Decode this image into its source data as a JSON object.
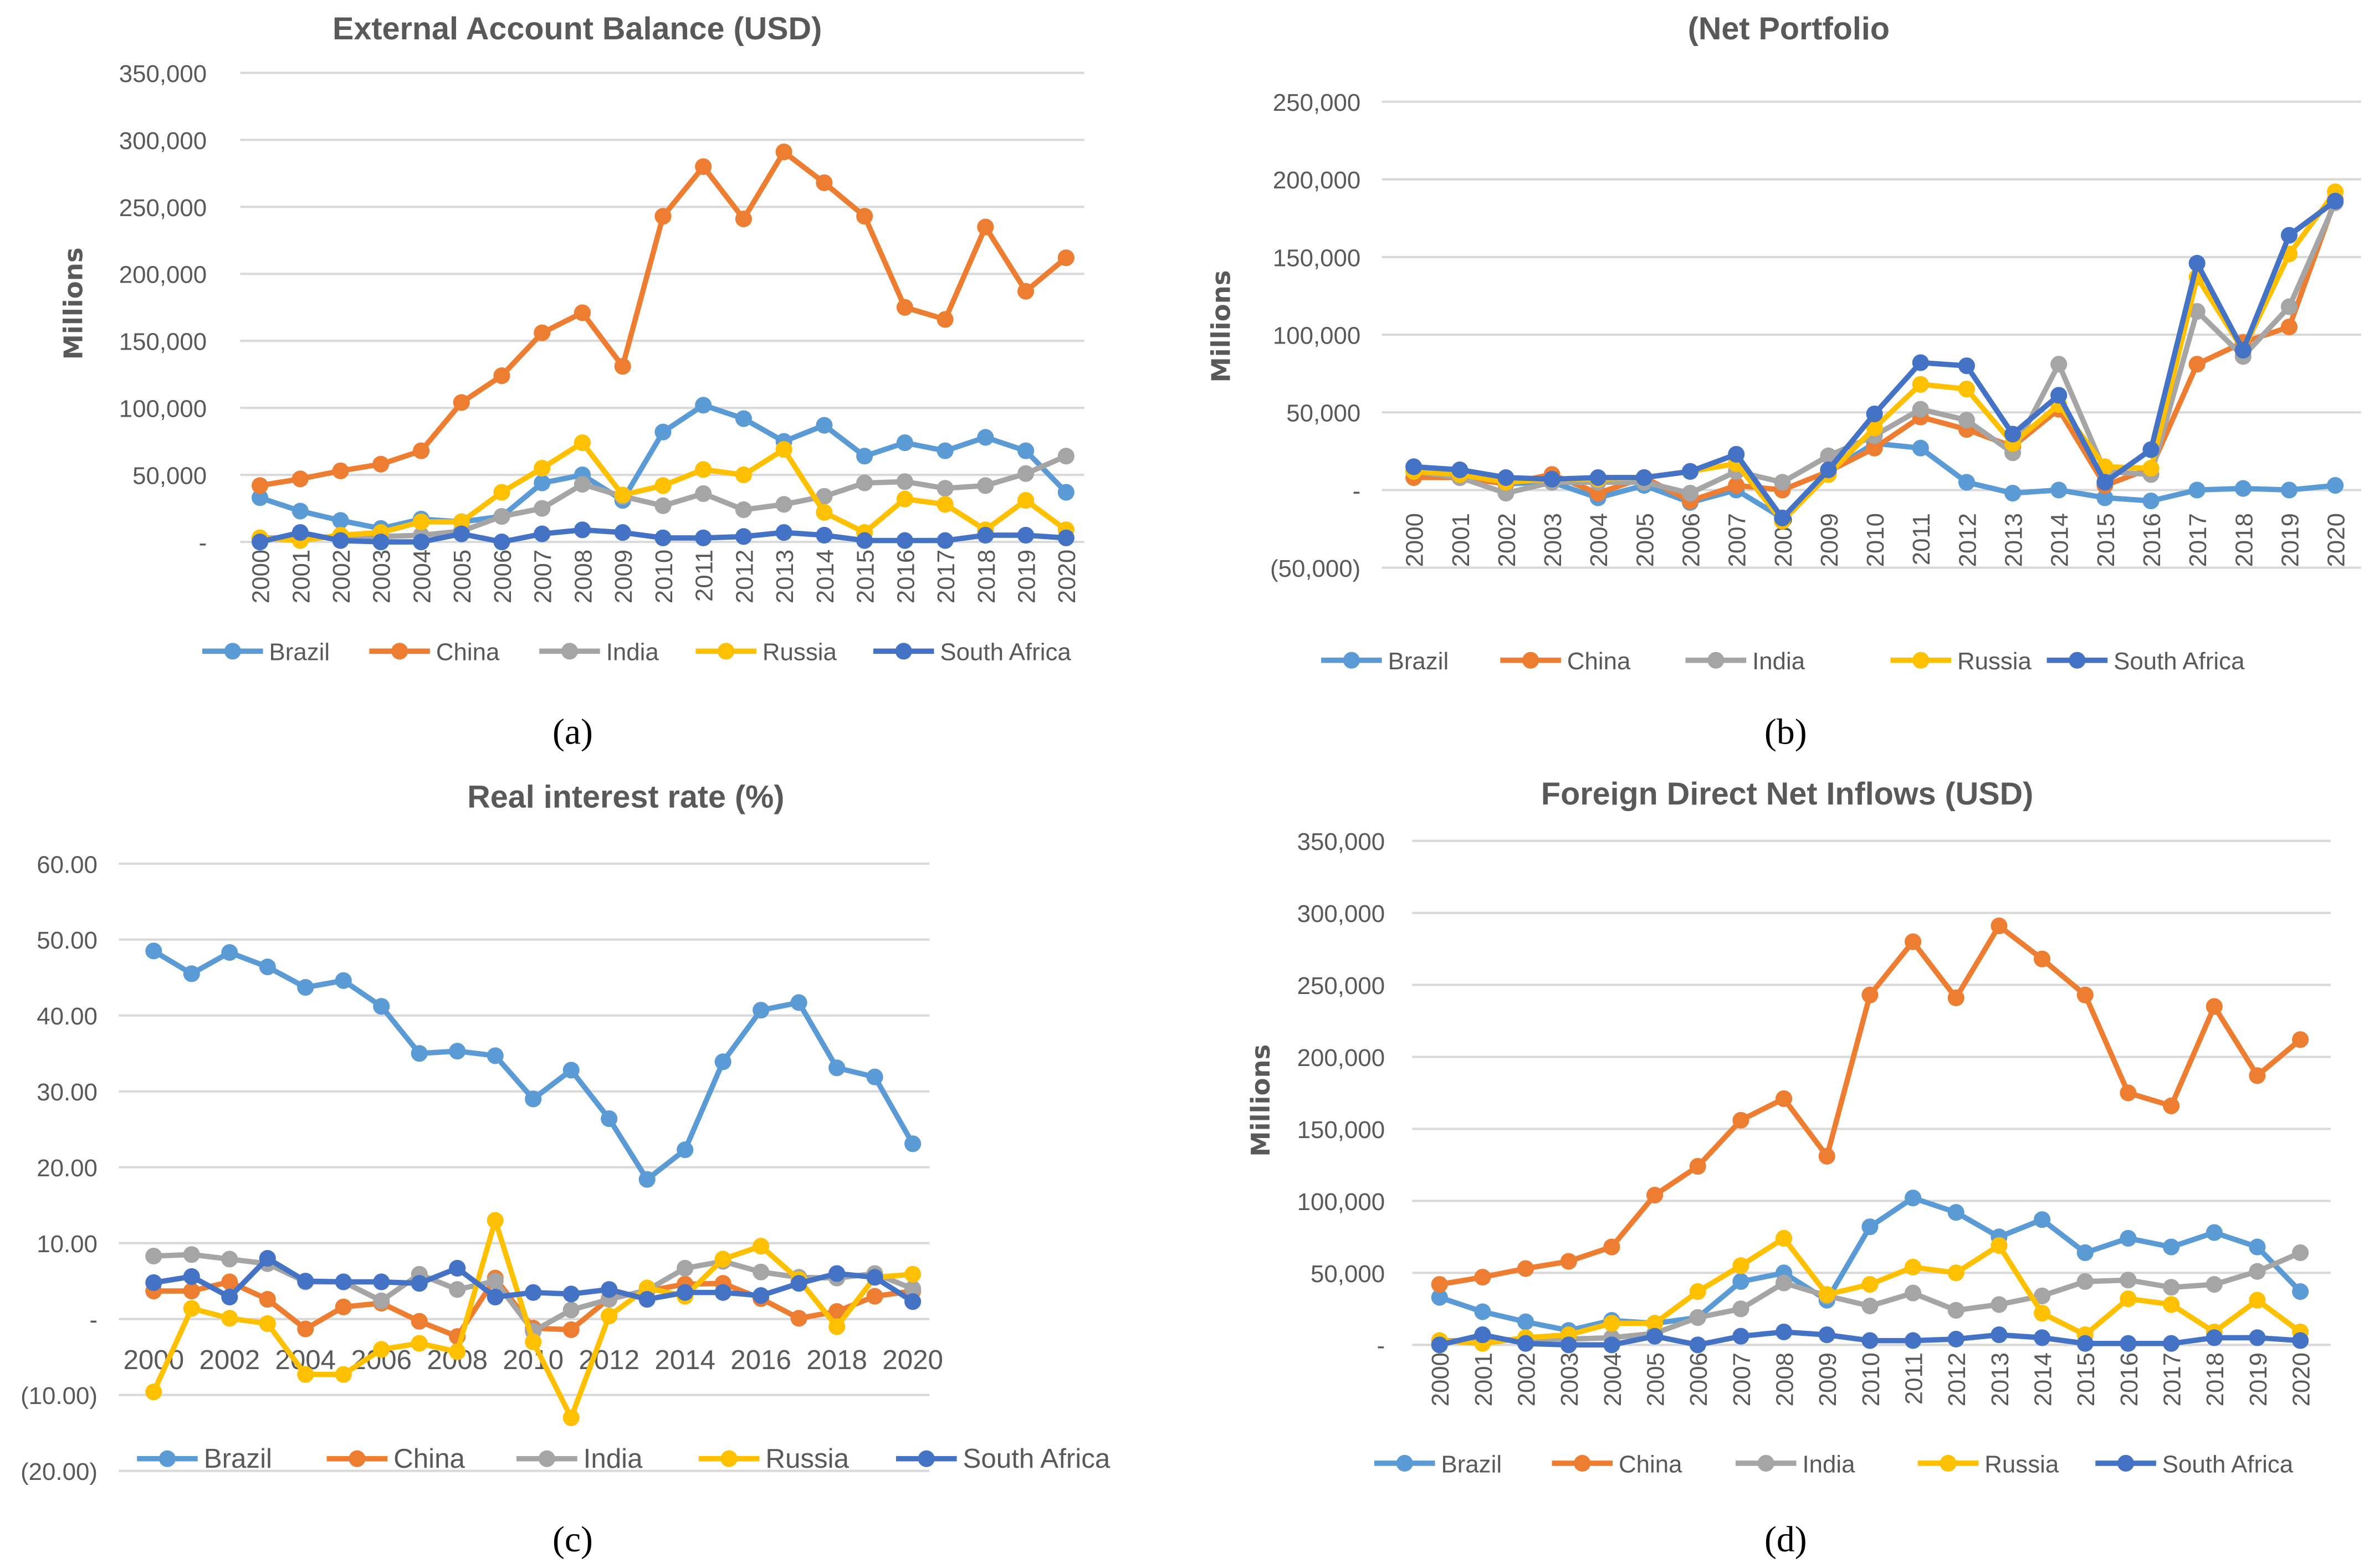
{
  "colors": {
    "Brazil": "#5B9BD5",
    "China": "#ED7D31",
    "India": "#A5A5A5",
    "Russia": "#FFC000",
    "South Africa": "#4472C4",
    "grid": "#D9D9D9"
  },
  "chart_data": [
    {
      "id": "a",
      "type": "line",
      "caption": "(a)",
      "title": "External Account Balance (USD)",
      "ylabel": "Millions",
      "xlabel": "",
      "ylim": [
        0,
        350000
      ],
      "yticks": [
        0,
        50000,
        100000,
        150000,
        200000,
        250000,
        300000,
        350000
      ],
      "ytick_labels": [
        "-",
        "50,000",
        "100,000",
        "150,000",
        "200,000",
        "250,000",
        "300,000",
        "350,000"
      ],
      "x": [
        "2000",
        "2001",
        "2002",
        "2003",
        "2004",
        "2005",
        "2006",
        "2007",
        "2008",
        "2009",
        "2010",
        "2011",
        "2012",
        "2013",
        "2014",
        "2015",
        "2016",
        "2017",
        "2018",
        "2019",
        "2020"
      ],
      "grid": true,
      "legend": "bottom",
      "series": [
        {
          "name": "Brazil",
          "values": [
            33000,
            23000,
            16000,
            10000,
            17000,
            15000,
            19000,
            44000,
            50000,
            31000,
            82000,
            102000,
            92000,
            75000,
            87000,
            64000,
            74000,
            68000,
            78000,
            68000,
            37000
          ]
        },
        {
          "name": "China",
          "values": [
            42000,
            47000,
            53000,
            58000,
            68000,
            104000,
            124000,
            156000,
            171000,
            131000,
            243000,
            280000,
            241000,
            291000,
            268000,
            243000,
            175000,
            166000,
            235000,
            187000,
            212000
          ]
        },
        {
          "name": "India",
          "values": [
            3000,
            3000,
            4000,
            4000,
            5000,
            8000,
            19000,
            25000,
            43000,
            34000,
            27000,
            36000,
            24000,
            28000,
            34000,
            44000,
            45000,
            40000,
            42000,
            51000,
            64000
          ]
        },
        {
          "name": "Russia",
          "values": [
            3000,
            1000,
            5000,
            7000,
            15000,
            15000,
            37000,
            55000,
            74000,
            35000,
            42000,
            54000,
            50000,
            69000,
            22000,
            7000,
            32000,
            28000,
            9000,
            31000,
            9000
          ]
        },
        {
          "name": "South Africa",
          "values": [
            0,
            7000,
            1000,
            0,
            0,
            6000,
            0,
            6000,
            9000,
            7000,
            3000,
            3000,
            4000,
            7000,
            5000,
            1000,
            1000,
            1000,
            5000,
            5000,
            3000
          ]
        }
      ]
    },
    {
      "id": "b",
      "type": "line",
      "caption": "(b)",
      "title": "(Net Portfolio",
      "ylabel": "Millions",
      "xlabel": "",
      "ylim": [
        -50000,
        250000
      ],
      "yticks": [
        -50000,
        0,
        50000,
        100000,
        150000,
        200000,
        250000
      ],
      "ytick_labels": [
        "(50,000)",
        "-",
        "50,000",
        "100,000",
        "150,000",
        "200,000",
        "250,000"
      ],
      "x": [
        "2000",
        "2001",
        "2002",
        "2003",
        "2004",
        "2005",
        "2006",
        "2007",
        "2008",
        "2009",
        "2010",
        "2011",
        "2012",
        "2013",
        "2014",
        "2015",
        "2016",
        "2017",
        "2018",
        "2019",
        "2020"
      ],
      "grid": true,
      "legend": "bottom",
      "series": [
        {
          "name": "Brazil",
          "values": [
            12000,
            8000,
            4000,
            5000,
            -5000,
            3000,
            -8000,
            0,
            -18000,
            12000,
            30000,
            27000,
            5000,
            -2000,
            0,
            -5000,
            -7000,
            0,
            1000,
            0,
            3000
          ]
        },
        {
          "name": "China",
          "values": [
            8000,
            8000,
            4000,
            10000,
            -2000,
            8000,
            -7000,
            3000,
            0,
            12000,
            27000,
            47000,
            39000,
            28000,
            52000,
            3000,
            14000,
            81000,
            95000,
            105000,
            187000
          ]
        },
        {
          "name": "India",
          "values": [
            12000,
            8000,
            -2000,
            5000,
            5000,
            5000,
            -2000,
            12000,
            5000,
            22000,
            35000,
            52000,
            45000,
            24000,
            81000,
            12000,
            10000,
            115000,
            86000,
            118000,
            185000
          ]
        },
        {
          "name": "Russia",
          "values": [
            12000,
            10000,
            5000,
            7000,
            7000,
            8000,
            12000,
            17000,
            -20000,
            10000,
            40000,
            68000,
            65000,
            30000,
            55000,
            15000,
            14000,
            137000,
            90000,
            152000,
            192000
          ]
        },
        {
          "name": "South Africa",
          "values": [
            15000,
            13000,
            8000,
            7000,
            8000,
            8000,
            12000,
            23000,
            -18000,
            13000,
            49000,
            82000,
            80000,
            36000,
            61000,
            5000,
            26000,
            146000,
            90000,
            164000,
            186000
          ]
        }
      ]
    },
    {
      "id": "c",
      "type": "line",
      "caption": "(c)",
      "title": "Real interest rate (%)",
      "ylabel": "",
      "xlabel": "",
      "ylim": [
        -20,
        60
      ],
      "yticks": [
        -20,
        -10,
        0,
        10,
        20,
        30,
        40,
        50,
        60
      ],
      "ytick_labels": [
        "(20.00)",
        "(10.00)",
        "-",
        "10.00",
        "20.00",
        "30.00",
        "40.00",
        "50.00",
        "60.00"
      ],
      "x": [
        "2000",
        "2001",
        "2002",
        "2003",
        "2004",
        "2005",
        "2006",
        "2007",
        "2008",
        "2009",
        "2010",
        "2011",
        "2012",
        "2013",
        "2014",
        "2015",
        "2016",
        "2017",
        "2018",
        "2019",
        "2020"
      ],
      "xtick_labels": [
        "2000",
        "2002",
        "2004",
        "2006",
        "2008",
        "2010",
        "2012",
        "2014",
        "2016",
        "2018",
        "2020"
      ],
      "grid": true,
      "legend": "bottom",
      "series": [
        {
          "name": "Brazil",
          "values": [
            48.5,
            45.5,
            48.3,
            46.4,
            43.7,
            44.6,
            41.2,
            35.0,
            35.3,
            34.7,
            29.0,
            32.8,
            26.4,
            18.4,
            22.3,
            33.9,
            40.7,
            41.7,
            33.1,
            31.9,
            23.1
          ]
        },
        {
          "name": "China",
          "values": [
            3.7,
            3.7,
            4.9,
            2.6,
            -1.3,
            1.6,
            2.1,
            -0.3,
            -2.3,
            5.4,
            -1.2,
            -1.4,
            2.7,
            3.7,
            4.6,
            4.7,
            2.7,
            0.1,
            1.0,
            3.0,
            3.7
          ]
        },
        {
          "name": "India",
          "values": [
            8.3,
            8.5,
            7.9,
            7.3,
            4.9,
            4.9,
            2.4,
            5.9,
            3.9,
            5.0,
            -1.6,
            1.2,
            2.6,
            3.8,
            6.7,
            7.6,
            6.2,
            5.5,
            5.4,
            6.0,
            4.0
          ]
        },
        {
          "name": "Russia",
          "values": [
            -9.6,
            1.4,
            0.1,
            -0.6,
            -7.3,
            -7.3,
            -4.0,
            -3.2,
            -4.3,
            13.0,
            -3.0,
            -13.0,
            0.4,
            4.1,
            3.0,
            7.9,
            9.6,
            5.2,
            -1.0,
            5.5,
            5.9
          ]
        },
        {
          "name": "South Africa",
          "values": [
            4.8,
            5.6,
            2.9,
            8.0,
            5.0,
            4.9,
            4.9,
            4.7,
            6.7,
            2.9,
            3.5,
            3.3,
            3.9,
            2.6,
            3.5,
            3.5,
            3.1,
            4.7,
            6.0,
            5.5,
            2.3
          ]
        }
      ]
    },
    {
      "id": "d",
      "type": "line",
      "caption": "(d)",
      "title": "Foreign Direct Net Inflows (USD)",
      "ylabel": "Millions",
      "xlabel": "",
      "ylim": [
        0,
        350000
      ],
      "yticks": [
        0,
        50000,
        100000,
        150000,
        200000,
        250000,
        300000,
        350000
      ],
      "ytick_labels": [
        "-",
        "50,000",
        "100,000",
        "150,000",
        "200,000",
        "250,000",
        "300,000",
        "350,000"
      ],
      "x": [
        "2000",
        "2001",
        "2002",
        "2003",
        "2004",
        "2005",
        "2006",
        "2007",
        "2008",
        "2009",
        "2010",
        "2011",
        "2012",
        "2013",
        "2014",
        "2015",
        "2016",
        "2017",
        "2018",
        "2019",
        "2020"
      ],
      "grid": true,
      "legend": "bottom",
      "series": [
        {
          "name": "Brazil",
          "values": [
            33000,
            23000,
            16000,
            10000,
            17000,
            15000,
            19000,
            44000,
            50000,
            31000,
            82000,
            102000,
            92000,
            75000,
            87000,
            64000,
            74000,
            68000,
            78000,
            68000,
            37000
          ]
        },
        {
          "name": "China",
          "values": [
            42000,
            47000,
            53000,
            58000,
            68000,
            104000,
            124000,
            156000,
            171000,
            131000,
            243000,
            280000,
            241000,
            291000,
            268000,
            243000,
            175000,
            166000,
            235000,
            187000,
            212000
          ]
        },
        {
          "name": "India",
          "values": [
            3000,
            3000,
            4000,
            4000,
            5000,
            8000,
            19000,
            25000,
            43000,
            34000,
            27000,
            36000,
            24000,
            28000,
            34000,
            44000,
            45000,
            40000,
            42000,
            51000,
            64000
          ]
        },
        {
          "name": "Russia",
          "values": [
            3000,
            1000,
            5000,
            7000,
            15000,
            15000,
            37000,
            55000,
            74000,
            35000,
            42000,
            54000,
            50000,
            69000,
            22000,
            7000,
            32000,
            28000,
            9000,
            31000,
            9000
          ]
        },
        {
          "name": "South Africa",
          "values": [
            0,
            7000,
            1000,
            0,
            0,
            6000,
            0,
            6000,
            9000,
            7000,
            3000,
            3000,
            4000,
            7000,
            5000,
            1000,
            1000,
            1000,
            5000,
            5000,
            3000
          ]
        }
      ]
    }
  ]
}
